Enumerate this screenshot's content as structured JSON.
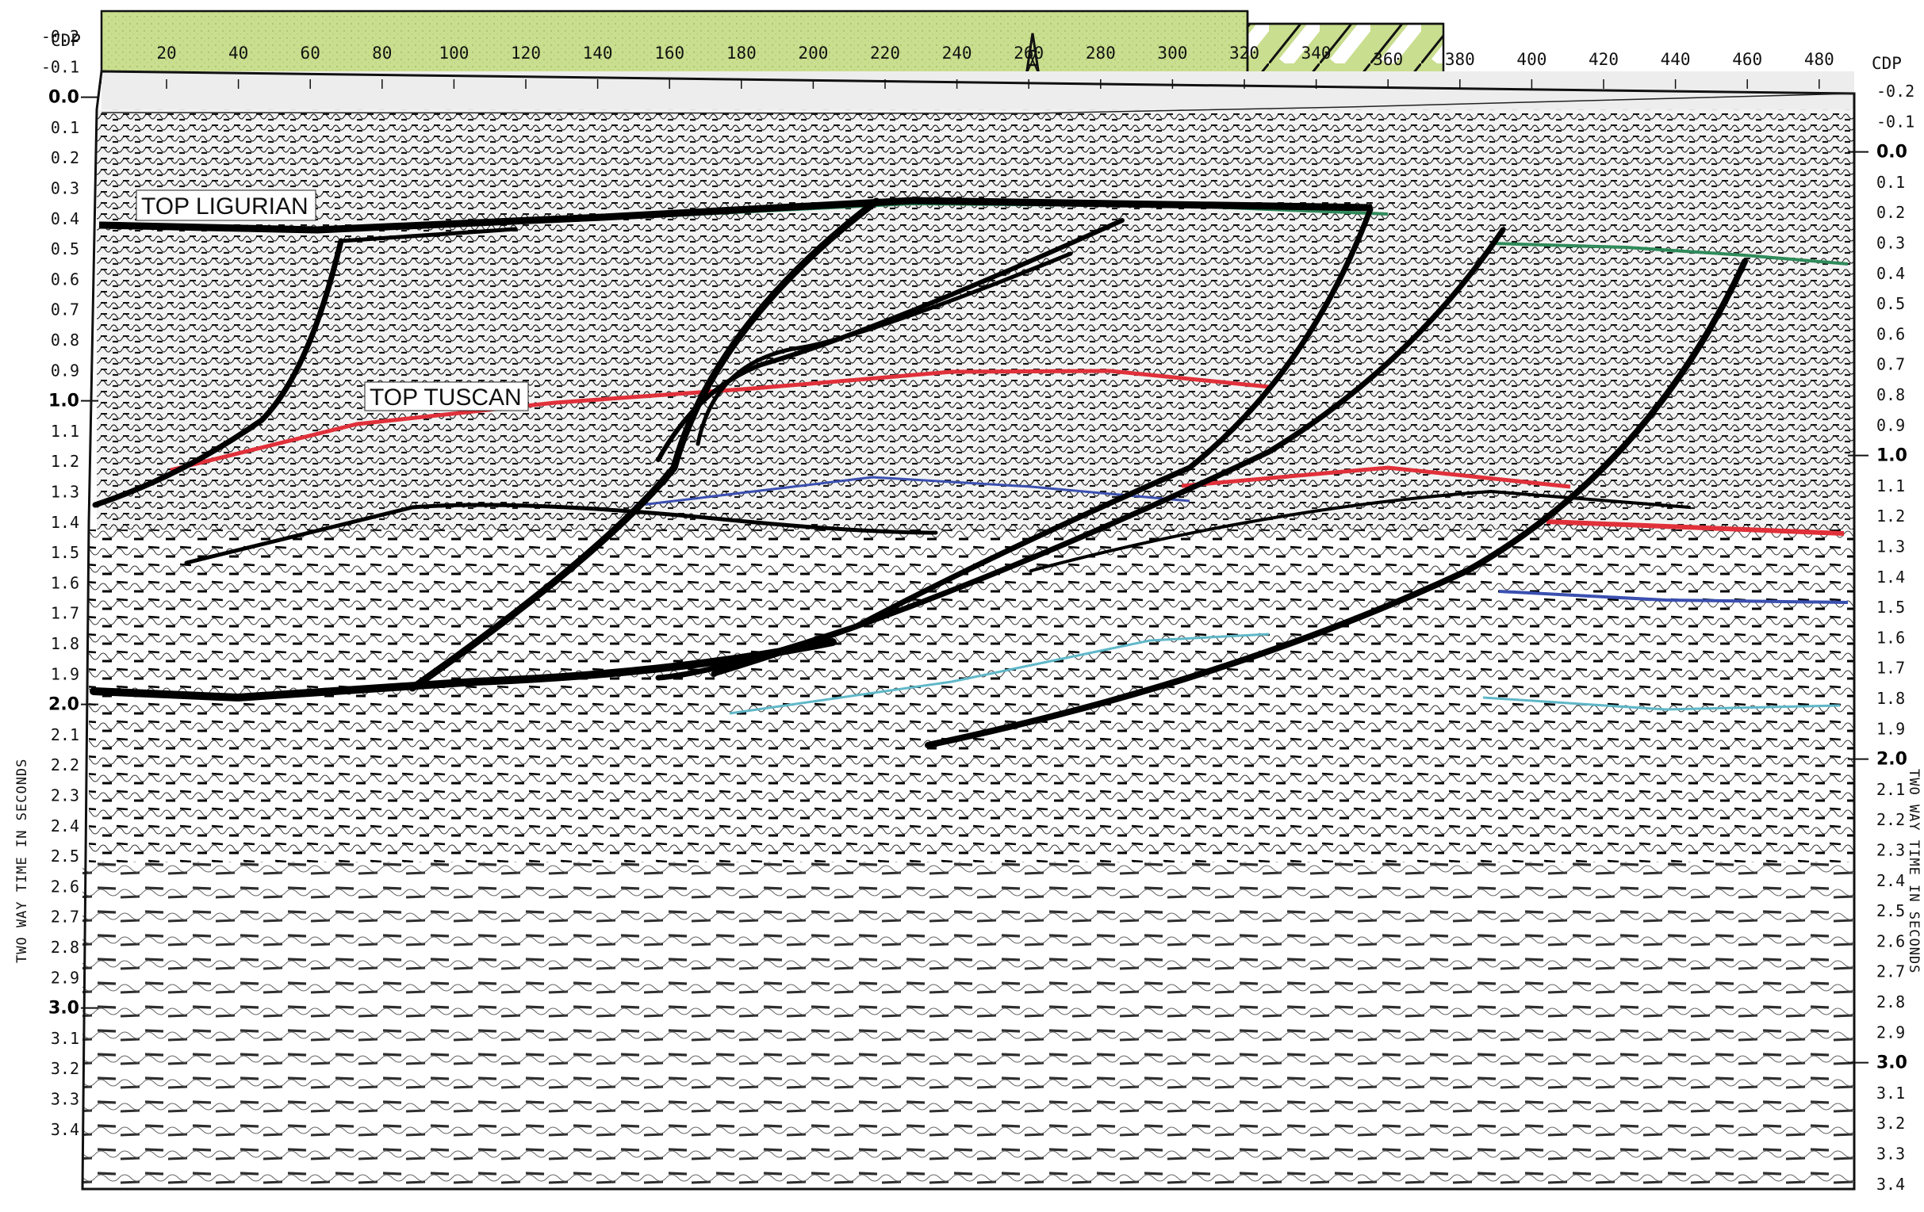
{
  "section": {
    "cdp_title_left": "CDP",
    "cdp_title_right": "CDP",
    "cdp_ticks": [
      "20",
      "40",
      "60",
      "80",
      "100",
      "120",
      "140",
      "160",
      "180",
      "200",
      "220",
      "240",
      "260",
      "280",
      "300",
      "320",
      "340",
      "360",
      "380",
      "400",
      "420",
      "440",
      "460",
      "480"
    ],
    "left_time_ticks": [
      "-0.2",
      "-0.1",
      "0.0",
      "0.1",
      "0.2",
      "0.3",
      "0.4",
      "0.5",
      "0.6",
      "0.7",
      "0.8",
      "0.9",
      "1.0",
      "1.1",
      "1.2",
      "1.3",
      "1.4",
      "1.5",
      "1.6",
      "1.7",
      "1.8",
      "1.9",
      "2.0",
      "2.1",
      "2.2",
      "2.3",
      "2.4",
      "2.5",
      "2.6",
      "2.7",
      "2.8",
      "2.9",
      "3.0",
      "3.1",
      "3.2",
      "3.3",
      "3.4"
    ],
    "right_time_ticks": [
      "-0.2",
      "-0.1",
      "0.0",
      "0.1",
      "0.2",
      "0.3",
      "0.4",
      "0.5",
      "0.6",
      "0.7",
      "0.8",
      "0.9",
      "1.0",
      "1.1",
      "1.2",
      "1.3",
      "1.4",
      "1.5",
      "1.6",
      "1.7",
      "1.8",
      "1.9",
      "2.0",
      "2.1",
      "2.2",
      "2.3",
      "2.4",
      "2.5",
      "2.6",
      "2.7",
      "2.8",
      "2.9",
      "3.0",
      "3.1",
      "3.2",
      "3.3",
      "3.4"
    ],
    "major_ticks": [
      "0.0",
      "1.0",
      "2.0",
      "3.0"
    ],
    "vertical_axis_title_left": "TWO WAY TIME IN SECONDS",
    "vertical_axis_title_right": "TWO WAY TIME IN SECONDS",
    "horizons": [
      {
        "label": "TOP LIGURIAN",
        "color": "#2f8a5a"
      },
      {
        "label": "TOP TUSCAN",
        "color": "#e0303a"
      }
    ],
    "colors": {
      "land_bar": "#c9de8e",
      "fault_lines": "#000000",
      "deep_horizon_blue": "#3a4fb0",
      "deep_horizon_cyan": "#5fb7c8",
      "seismic_ink": "#1a1a1a"
    },
    "icons": {
      "well_symbol": "derrick-icon"
    }
  }
}
